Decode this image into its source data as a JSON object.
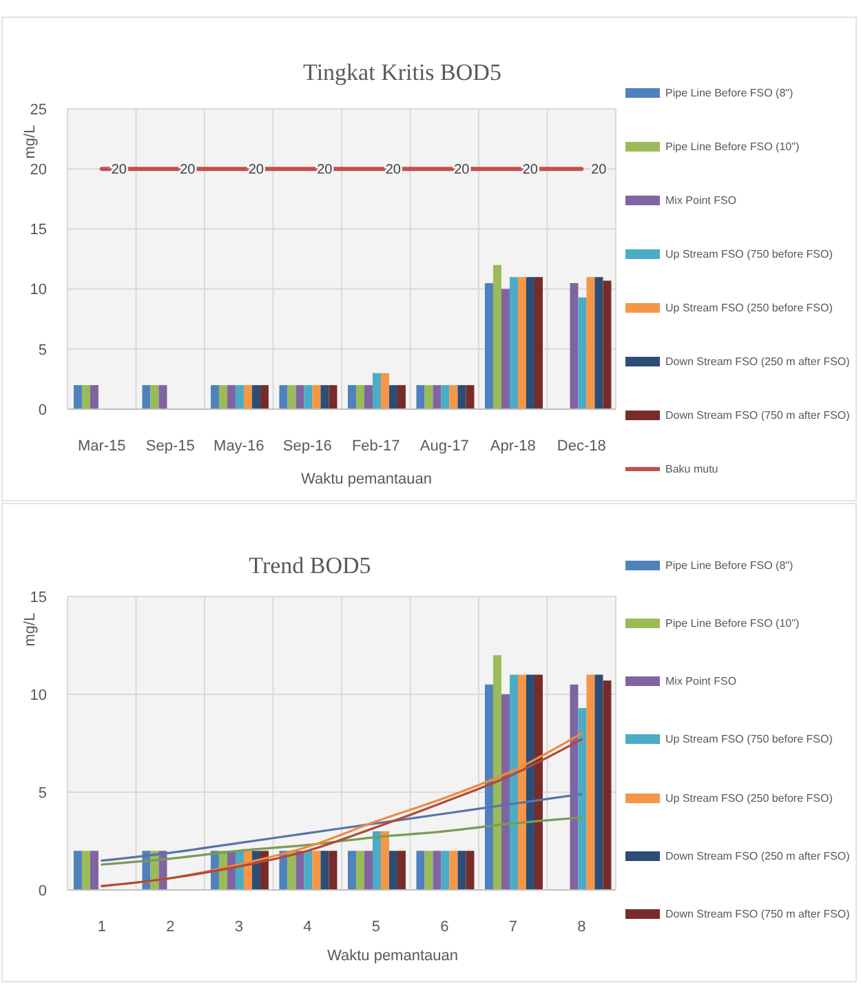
{
  "chart_data": [
    {
      "type": "bar",
      "title": "Tingkat Kritis BOD5",
      "xlabel": "Waktu pemantauan",
      "ylabel": "mg/L",
      "categories": [
        "Mar-15",
        "Sep-15",
        "May-16",
        "Sep-16",
        "Feb-17",
        "Aug-17",
        "Apr-18",
        "Dec-18"
      ],
      "series": [
        {
          "name": "Pipe Line Before FSO (8\")",
          "color": "#4f81bd",
          "values": [
            2,
            2,
            2,
            2,
            2,
            2,
            10.5,
            null
          ]
        },
        {
          "name": "Pipe Line Before FSO (10\")",
          "color": "#9bbb59",
          "values": [
            2,
            2,
            2,
            2,
            2,
            2,
            12,
            null
          ]
        },
        {
          "name": "Mix Point FSO",
          "color": "#8064a2",
          "values": [
            2,
            2,
            2,
            2,
            2,
            2,
            10,
            10.5
          ]
        },
        {
          "name": "Up Stream FSO (750 before FSO)",
          "color": "#4bacc6",
          "values": [
            null,
            null,
            2,
            2,
            3,
            2,
            11,
            9.3
          ]
        },
        {
          "name": "Up Stream FSO (250 before FSO)",
          "color": "#f79646",
          "values": [
            null,
            null,
            2,
            2,
            3,
            2,
            11,
            11
          ]
        },
        {
          "name": "Down Stream FSO (250 m after FSO)",
          "color": "#2c4d75",
          "values": [
            null,
            null,
            2,
            2,
            2,
            2,
            11,
            11
          ]
        },
        {
          "name": "Down Stream FSO (750 m after FSO)",
          "color": "#772c2a",
          "values": [
            null,
            null,
            2,
            2,
            2,
            2,
            11,
            10.7
          ]
        },
        {
          "name": "Baku mutu",
          "type": "line",
          "color": "#c0504d",
          "values": [
            20,
            20,
            20,
            20,
            20,
            20,
            20,
            20
          ],
          "value_labels": [
            "20",
            "20",
            "20",
            "20",
            "20",
            "20",
            "20",
            "20"
          ]
        }
      ],
      "ylim": [
        0,
        25
      ],
      "yticks": [
        0,
        5,
        10,
        15,
        20,
        25
      ],
      "grid": true,
      "legend": "right"
    },
    {
      "type": "bar",
      "title": "Trend BOD5",
      "xlabel": "Waktu pemantauan",
      "ylabel": "mg/L",
      "categories": [
        "1",
        "2",
        "3",
        "4",
        "5",
        "6",
        "7",
        "8"
      ],
      "series": [
        {
          "name": "Pipe Line Before FSO (8\")",
          "color": "#4f81bd",
          "values": [
            2,
            2,
            2,
            2,
            2,
            2,
            10.5,
            null
          ]
        },
        {
          "name": "Pipe Line Before FSO (10\")",
          "color": "#9bbb59",
          "values": [
            2,
            2,
            2,
            2,
            2,
            2,
            12,
            null
          ]
        },
        {
          "name": "Mix Point FSO",
          "color": "#8064a2",
          "values": [
            2,
            2,
            2,
            2,
            2,
            2,
            10,
            10.5
          ]
        },
        {
          "name": "Up Stream FSO (750 before FSO)",
          "color": "#4bacc6",
          "values": [
            null,
            null,
            2,
            2,
            3,
            2,
            11,
            9.3
          ]
        },
        {
          "name": "Up Stream FSO (250 before FSO)",
          "color": "#f79646",
          "values": [
            null,
            null,
            2,
            2,
            3,
            2,
            11,
            11
          ]
        },
        {
          "name": "Down Stream FSO (250 m after FSO)",
          "color": "#2c4d75",
          "values": [
            null,
            null,
            2,
            2,
            2,
            2,
            11,
            11
          ]
        },
        {
          "name": "Down Stream FSO (750 m after FSO)",
          "color": "#772c2a",
          "values": [
            null,
            null,
            2,
            2,
            2,
            2,
            11,
            10.7
          ]
        },
        {
          "type": "line",
          "color": "#5a74a8",
          "values": [
            1.5,
            1.9,
            2.4,
            2.9,
            3.4,
            3.9,
            4.4,
            4.9
          ]
        },
        {
          "type": "line",
          "color": "#7a9a5a",
          "values": [
            1.3,
            1.6,
            2.0,
            2.3,
            2.7,
            3.0,
            3.4,
            3.7
          ]
        },
        {
          "type": "line",
          "color": "#f08a3c",
          "values": [
            0.2,
            0.6,
            1.3,
            2.2,
            3.5,
            4.7,
            6.1,
            8.0
          ]
        },
        {
          "type": "line",
          "color": "#b04a3a",
          "values": [
            0.2,
            0.6,
            1.2,
            2.0,
            3.2,
            4.5,
            5.9,
            7.7
          ]
        }
      ],
      "ylim": [
        0,
        15
      ],
      "yticks": [
        0,
        5,
        10,
        15
      ],
      "grid": true,
      "legend": "right"
    }
  ]
}
